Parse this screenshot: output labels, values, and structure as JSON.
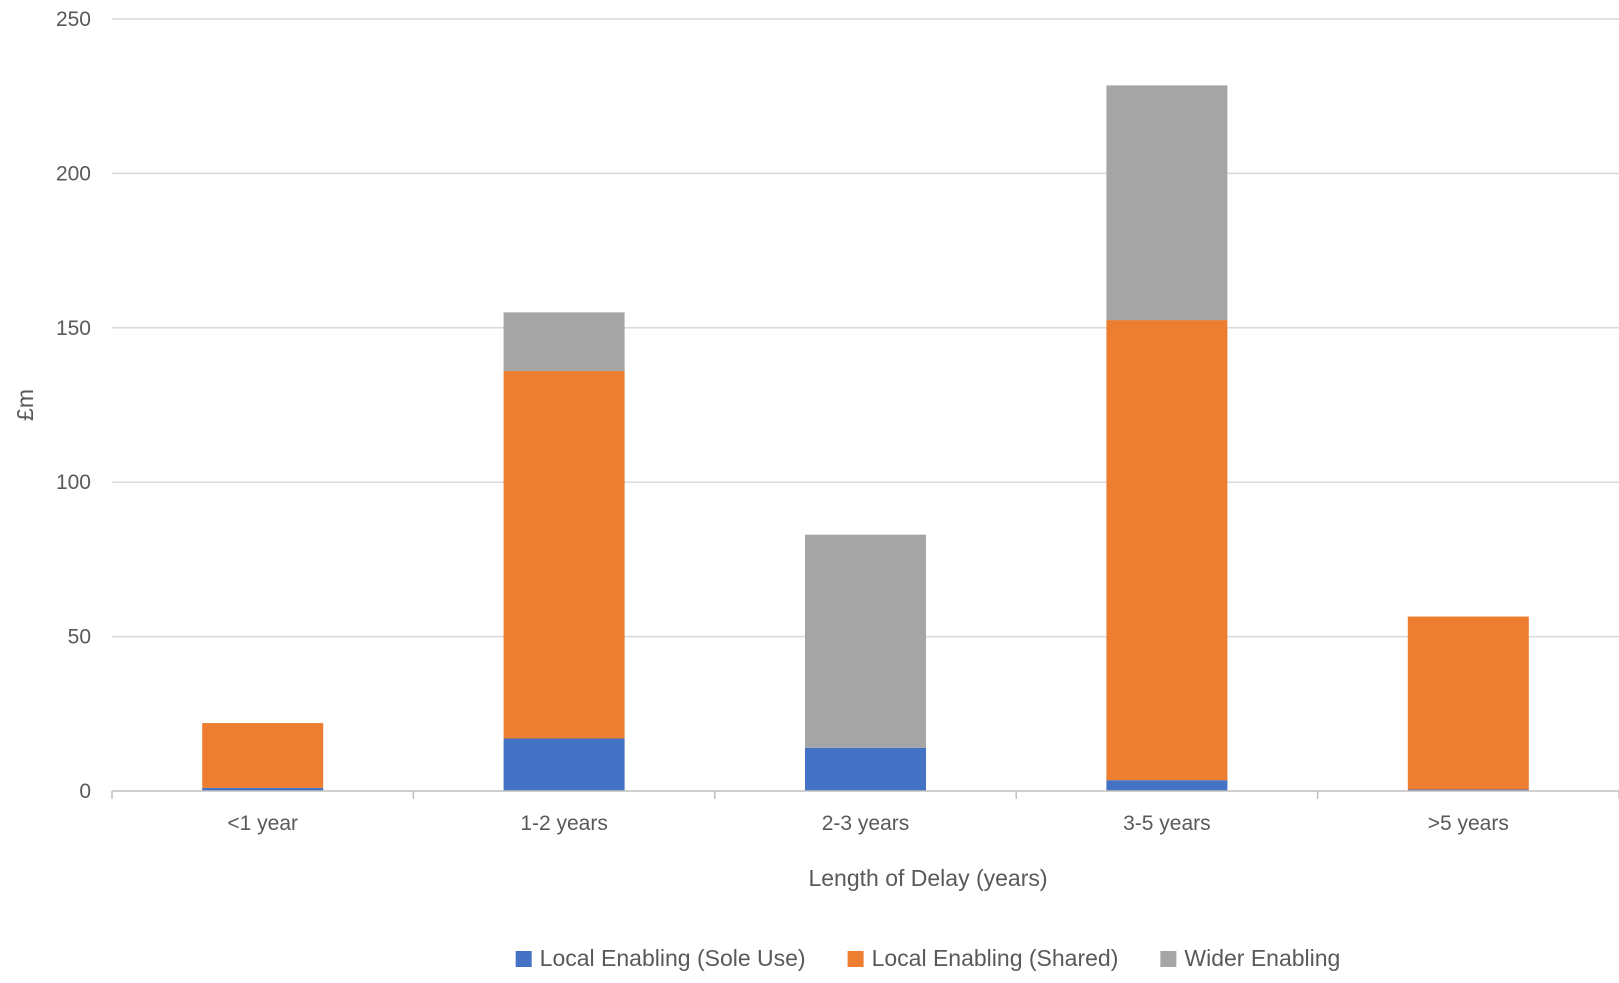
{
  "chart_data": {
    "type": "bar",
    "stacked": true,
    "title": "",
    "xlabel": "Length of Delay (years)",
    "ylabel": "£m",
    "ylim": [
      0,
      250
    ],
    "yticks": [
      0,
      50,
      100,
      150,
      200,
      250
    ],
    "grid": true,
    "legend_position": "bottom",
    "categories": [
      "<1 year",
      "1-2 years",
      "2-3 years",
      "3-5 years",
      ">5 years"
    ],
    "series": [
      {
        "name": "Local Enabling (Sole Use)",
        "color": "#4472C4",
        "values": [
          1,
          17,
          14,
          3.5,
          0.5
        ]
      },
      {
        "name": "Local Enabling (Shared)",
        "color": "#ED7D31",
        "values": [
          21,
          119,
          0,
          149,
          56
        ]
      },
      {
        "name": "Wider Enabling",
        "color": "#A5A5A5",
        "values": [
          0,
          19,
          69,
          76,
          0
        ]
      }
    ]
  }
}
